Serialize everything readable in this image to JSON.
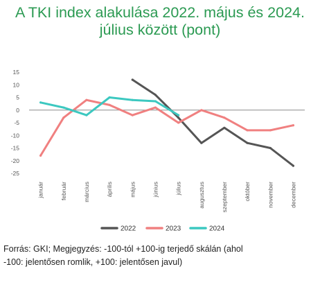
{
  "title": {
    "line1": "A TKI index alakulása 2022. május és 2024.",
    "line2": "július között (pont)"
  },
  "footnote": {
    "line1": "Forrás: GKI; Megjegyzés: -100-tól +100-ig terjedő skálán (ahol",
    "line2": "-100: jelentősen romlik, +100: jelentősen javul)"
  },
  "colors": {
    "title": "#2b9a52",
    "s2022": "#555555",
    "s2023": "#f08080",
    "s2024": "#3cc8c0",
    "zero_line": "#8c8c8c"
  },
  "chart_data": {
    "type": "line",
    "categories": [
      "január",
      "február",
      "március",
      "április",
      "május",
      "június",
      "július",
      "augusztus",
      "szeptember",
      "október",
      "november",
      "december"
    ],
    "ylim": [
      -25,
      15
    ],
    "yticks": [
      15,
      10,
      5,
      0,
      -5,
      -10,
      -15,
      -20,
      -25
    ],
    "grid": false,
    "legend_position": "bottom",
    "xlabel": "",
    "ylabel": "",
    "series": [
      {
        "name": "2022",
        "color": "#555555",
        "values": [
          null,
          null,
          null,
          null,
          12,
          6,
          -3,
          -13,
          -7,
          -13,
          -15,
          -22
        ]
      },
      {
        "name": "2023",
        "color": "#f08080",
        "values": [
          -18,
          -3,
          4,
          2,
          -2,
          1,
          -5,
          0,
          -3,
          -8,
          -8,
          -6
        ]
      },
      {
        "name": "2024",
        "color": "#3cc8c0",
        "values": [
          3,
          1,
          -2,
          5,
          4,
          3.5,
          -2,
          null,
          null,
          null,
          null,
          null
        ]
      }
    ]
  }
}
